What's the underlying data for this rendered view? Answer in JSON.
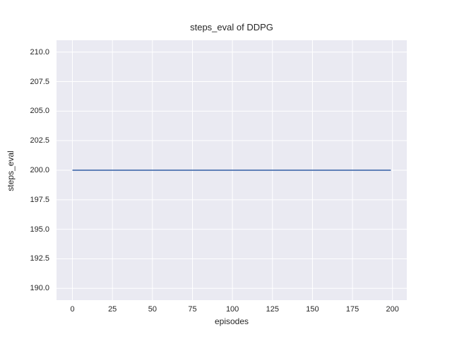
{
  "chart_data": {
    "type": "line",
    "title": "steps_eval of DDPG",
    "xlabel": "episodes",
    "ylabel": "steps_eval",
    "xlim": [
      -9.95,
      208.95
    ],
    "ylim": [
      189,
      211
    ],
    "xticks": [
      0,
      25,
      50,
      75,
      100,
      125,
      150,
      175,
      200
    ],
    "xtick_labels": [
      "0",
      "25",
      "50",
      "75",
      "100",
      "125",
      "150",
      "175",
      "200"
    ],
    "yticks": [
      190,
      192.5,
      195,
      197.5,
      200,
      202.5,
      205,
      207.5,
      210
    ],
    "ytick_labels": [
      "190.0",
      "192.5",
      "195.0",
      "197.5",
      "200.0",
      "202.5",
      "205.0",
      "207.5",
      "210.0"
    ],
    "grid": true,
    "legend": "none",
    "styles": {
      "axes_background": "#EAEAF2",
      "grid_color": "#FFFFFF",
      "text_color": "#262626",
      "figure_background": "#FFFFFF"
    },
    "series": [
      {
        "name": "steps_eval",
        "color": "#4C72B0",
        "line_width": 1.8,
        "x": [
          0,
          199
        ],
        "y": [
          200,
          200
        ]
      }
    ]
  }
}
